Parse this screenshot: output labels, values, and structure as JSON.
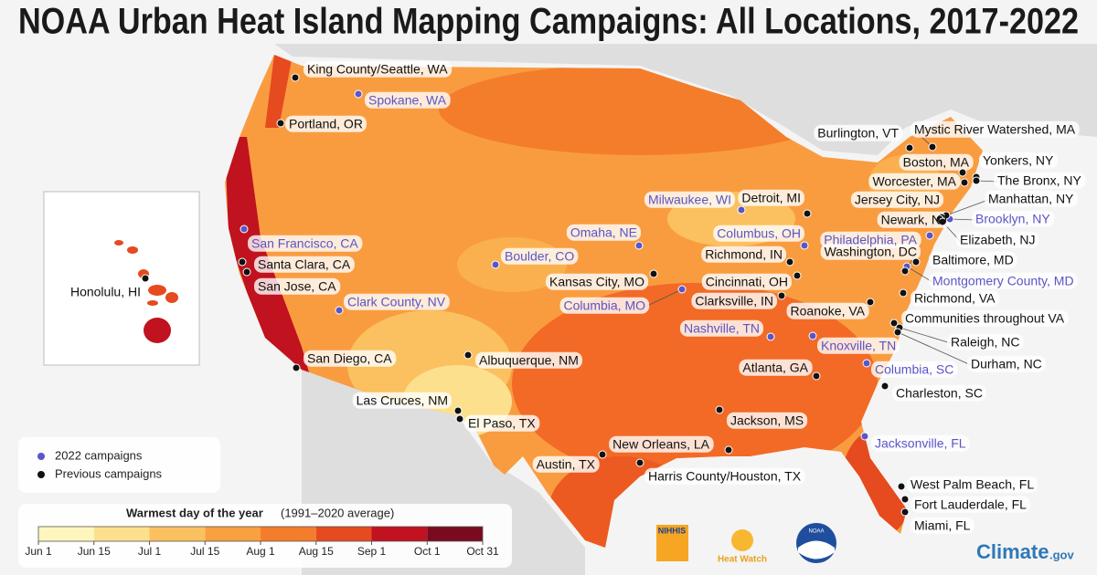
{
  "title": "NOAA Urban Heat Island Mapping Campaigns: All Locations, 2017-2022",
  "legend": [
    {
      "label": "2022 campaigns",
      "color": "#5a55c8",
      "locations": [
        "Spokane, WA",
        "San Francisco, CA",
        "Clark County, NV",
        "Boulder, CO",
        "Omaha, NE",
        "Milwaukee, WI",
        "Columbia, MO",
        "Columbus, OH",
        "Philadelphia, PA",
        "Nashville, TN",
        "Knoxville, TN",
        "Columbia, SC",
        "Jacksonville, FL",
        "Brooklyn, NY",
        "Montgomery County, MD"
      ]
    },
    {
      "label": "Previous campaigns",
      "color": "#111111",
      "locations": [
        "King County/Seattle, WA",
        "Portland, OR",
        "Santa Clara, CA",
        "San Jose, CA",
        "San Diego, CA",
        "Honolulu, HI",
        "Albuquerque, NM",
        "Las Cruces, NM",
        "El Paso, TX",
        "Austin, TX",
        "Harris County/Houston, TX",
        "New Orleans, LA",
        "Jackson, MS",
        "Atlanta, GA",
        "Kansas City, MO",
        "Cincinnati, OH",
        "Richmond, IN",
        "Clarksville, IN",
        "Detroit, MI",
        "Burlington, VT",
        "Mystic River Watershed, MA",
        "Boston, MA",
        "Worcester, MA",
        "Yonkers, NY",
        "The Bronx, NY",
        "Manhattan, NY",
        "Jersey City, NJ",
        "Newark, NJ",
        "Elizabeth, NJ",
        "Baltimore, MD",
        "Washington, DC",
        "Richmond, VA",
        "Roanoke, VA",
        "Communities throughout VA",
        "Raleigh, NC",
        "Durham, NC",
        "Charleston, SC",
        "West Palm Beach, FL",
        "Fort Lauderdale, FL",
        "Miami, FL"
      ]
    }
  ],
  "color_scale": {
    "title": "Warmest day of the year",
    "subtitle": "(1991–2020 average)",
    "ticks": [
      "Jun 1",
      "Jun 15",
      "Jul 1",
      "Jul 15",
      "Aug 1",
      "Aug 15",
      "Sep 1",
      "Oct 1",
      "Oct 31"
    ],
    "colors": [
      "#fff6bd",
      "#fde08e",
      "#fbc160",
      "#f9a040",
      "#f47d2c",
      "#e64a1f",
      "#c0121f",
      "#7a0a1e"
    ]
  },
  "logos": {
    "nihhis": "NIHHIS",
    "heat_watch": "Heat Watch",
    "noaa": "NOAA",
    "climate": "Climate",
    "gov": ".gov"
  }
}
